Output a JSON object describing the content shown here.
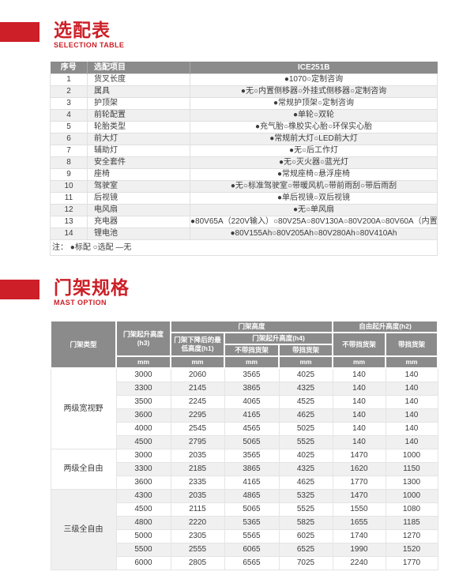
{
  "accent_color": "#cc1f27",
  "header_gray": "#8b8b8b",
  "section1": {
    "title": "选配表",
    "subtitle": "SELECTION TABLE",
    "table": {
      "headers": [
        "序号",
        "选配项目",
        "ICE251B"
      ],
      "rows": [
        [
          "1",
          "货叉长度",
          "●1070○定制咨询"
        ],
        [
          "2",
          "属具",
          "●无○内置侧移器○外挂式侧移器○定制咨询"
        ],
        [
          "3",
          "护顶架",
          "●常规护顶架○定制咨询"
        ],
        [
          "4",
          "前轮配置",
          "●单轮○双轮"
        ],
        [
          "5",
          "轮胎类型",
          "●充气胎○橡胶实心胎○环保实心胎"
        ],
        [
          "6",
          "前大灯",
          "●常规前大灯○LED前大灯"
        ],
        [
          "7",
          "辅助灯",
          "●无○后工作灯"
        ],
        [
          "8",
          "安全套件",
          "●无○灭火器○蓝光灯"
        ],
        [
          "9",
          "座椅",
          "●常规座椅○悬浮座椅"
        ],
        [
          "10",
          "驾驶室",
          "●无○标准驾驶室○带暖风机○带前雨刮○带后雨刮"
        ],
        [
          "11",
          "后视镜",
          "●单后视镜○双后视镜"
        ],
        [
          "12",
          "电风扇",
          "●无○单风扇"
        ],
        [
          "13",
          "充电器",
          "●80V65A（220V输入）○80V25A○80V130A○80V200A○80V60A（内置）"
        ],
        [
          "14",
          "锂电池",
          "●80V155Ah○80V205Ah○80V280Ah○80V410Ah"
        ]
      ],
      "note": "注：  ●标配     ○选配     —无"
    }
  },
  "section2": {
    "title": "门架规格",
    "subtitle": "MAST OPTION",
    "table": {
      "header": {
        "mast_type": "门架类型",
        "lift_height_h3": "门架起升高度(h3)",
        "mast_height": "门架高度",
        "lowered_height_h1": "门架下降后的最低高度(h1)",
        "lift_height_h4": "门架起升高度(h4)",
        "without_backrest": "不带挡货架",
        "with_backrest": "带挡货架",
        "free_lift_h2": "自由起升高度(h2)",
        "unit": "mm"
      },
      "groups": [
        {
          "type": "两级宽视野",
          "rows": [
            [
              "3000",
              "2060",
              "3565",
              "4025",
              "140",
              "140"
            ],
            [
              "3300",
              "2145",
              "3865",
              "4325",
              "140",
              "140"
            ],
            [
              "3500",
              "2245",
              "4065",
              "4525",
              "140",
              "140"
            ],
            [
              "3600",
              "2295",
              "4165",
              "4625",
              "140",
              "140"
            ],
            [
              "4000",
              "2545",
              "4565",
              "5025",
              "140",
              "140"
            ],
            [
              "4500",
              "2795",
              "5065",
              "5525",
              "140",
              "140"
            ]
          ]
        },
        {
          "type": "两级全自由",
          "rows": [
            [
              "3000",
              "2035",
              "3565",
              "4025",
              "1470",
              "1000"
            ],
            [
              "3300",
              "2185",
              "3865",
              "4325",
              "1620",
              "1150"
            ],
            [
              "3600",
              "2335",
              "4165",
              "4625",
              "1770",
              "1300"
            ]
          ]
        },
        {
          "type": "三级全自由",
          "rows": [
            [
              "4300",
              "2035",
              "4865",
              "5325",
              "1470",
              "1000"
            ],
            [
              "4500",
              "2115",
              "5065",
              "5525",
              "1550",
              "1080"
            ],
            [
              "4800",
              "2220",
              "5365",
              "5825",
              "1655",
              "1185"
            ],
            [
              "5000",
              "2305",
              "5565",
              "6025",
              "1740",
              "1270"
            ],
            [
              "5500",
              "2555",
              "6065",
              "6525",
              "1990",
              "1520"
            ],
            [
              "6000",
              "2805",
              "6565",
              "7025",
              "2240",
              "1770"
            ]
          ]
        }
      ]
    }
  }
}
